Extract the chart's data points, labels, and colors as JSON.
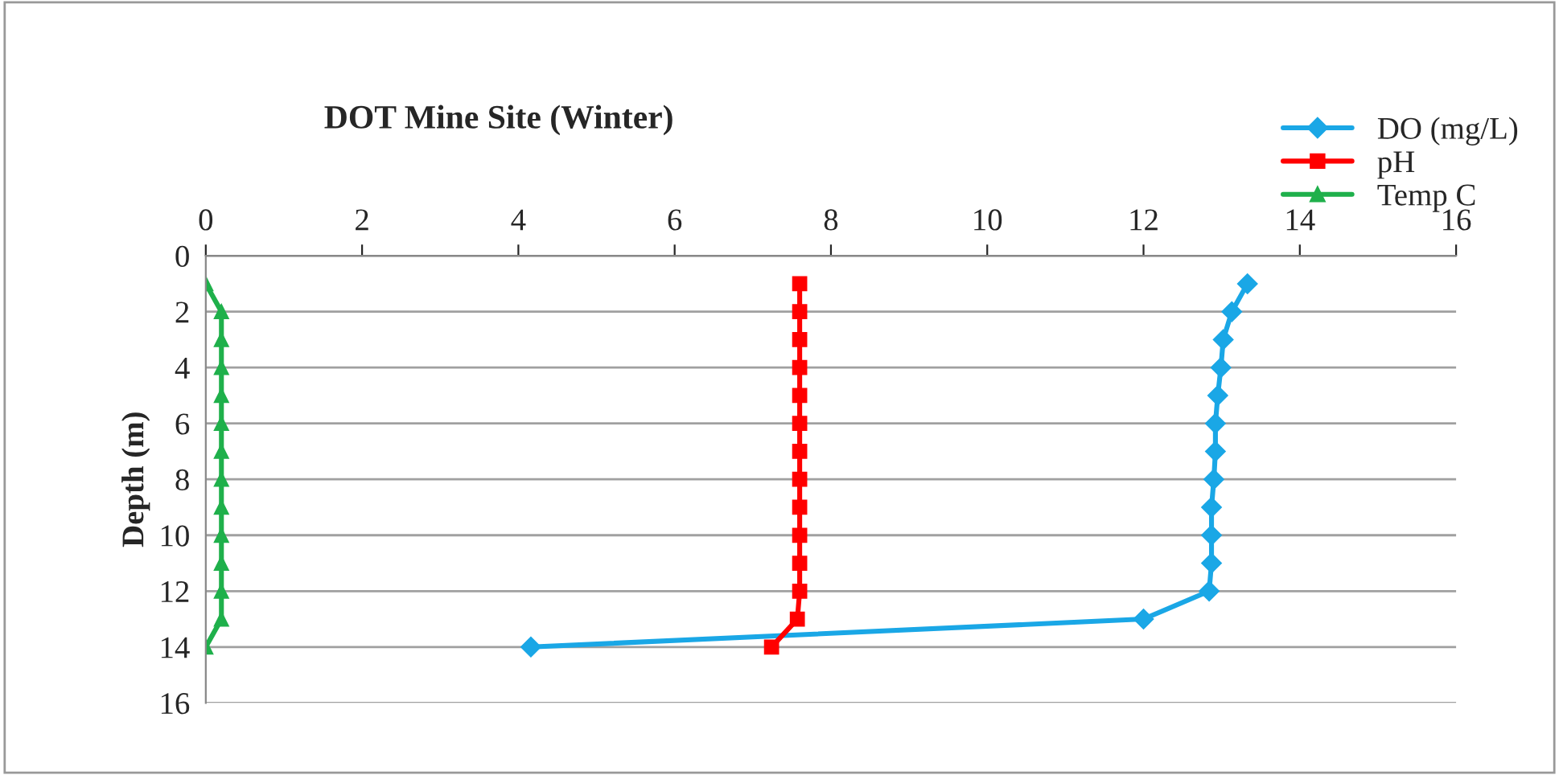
{
  "chart_data": {
    "type": "line",
    "title": "DOT Mine Site (Winter)",
    "ylabel": "Depth (m)",
    "x": [
      1,
      2,
      3,
      4,
      5,
      6,
      7,
      8,
      9,
      10,
      11,
      12,
      13,
      14
    ],
    "series": [
      {
        "name": "DO (mg/L)",
        "color": "#1aa7e6",
        "marker": "diamond",
        "values": [
          13.33,
          13.13,
          13.02,
          12.99,
          12.95,
          12.92,
          12.92,
          12.9,
          12.87,
          12.87,
          12.87,
          12.84,
          12.0,
          4.16
        ]
      },
      {
        "name": "pH",
        "color": "#ff0000",
        "marker": "square",
        "values": [
          7.6,
          7.6,
          7.6,
          7.6,
          7.6,
          7.6,
          7.6,
          7.6,
          7.6,
          7.6,
          7.6,
          7.6,
          7.57,
          7.24
        ]
      },
      {
        "name": "Temp C",
        "color": "#1fb04b",
        "marker": "triangle",
        "values": [
          0.0,
          0.2,
          0.2,
          0.2,
          0.2,
          0.2,
          0.2,
          0.2,
          0.2,
          0.2,
          0.2,
          0.2,
          0.2,
          0.0
        ]
      }
    ],
    "orientation": "horizontal",
    "xlim": [
      0,
      16
    ],
    "xticks": [
      0,
      2,
      4,
      6,
      8,
      10,
      12,
      14,
      16
    ],
    "ylim": [
      16,
      0
    ],
    "yticks": [
      0,
      2,
      4,
      6,
      8,
      10,
      12,
      14,
      16
    ],
    "grid": "y",
    "legend": "top right",
    "line_style": "solid"
  }
}
